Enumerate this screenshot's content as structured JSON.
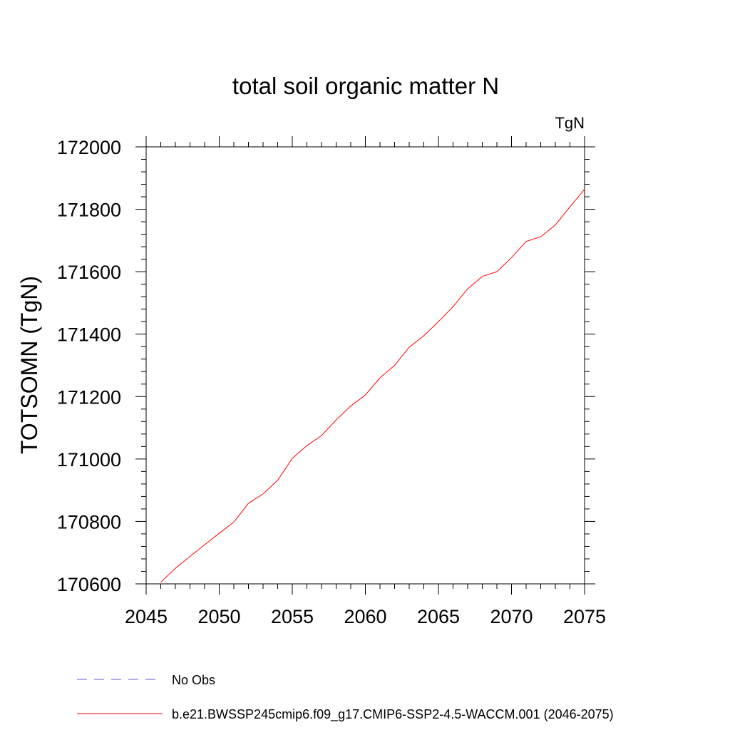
{
  "chart_data": {
    "type": "line",
    "title": "total soil organic matter N",
    "units_label": "TgN",
    "xlabel": "",
    "ylabel": "TOTSOMN  (TgN)",
    "xlim": [
      2045,
      2075
    ],
    "ylim": [
      170600,
      172000
    ],
    "x_ticks": [
      "2045",
      "2050",
      "2055",
      "2060",
      "2065",
      "2070",
      "2075"
    ],
    "y_ticks": [
      "170600",
      "170800",
      "171000",
      "171200",
      "171400",
      "171600",
      "171800",
      "172000"
    ],
    "grid": false,
    "legend_position": "bottom-left",
    "series": [
      {
        "name": "No Obs",
        "color": "#6a5acd",
        "dashed": true,
        "x": [],
        "y": []
      },
      {
        "name": "b.e21.BWSSP245cmip6.f09_g17.CMIP6-SSP2-4.5-WACCM.001 (2046-2075)",
        "color": "#ff0000",
        "dashed": false,
        "x": [
          2046,
          2047,
          2048,
          2049,
          2050,
          2051,
          2052,
          2053,
          2054,
          2055,
          2056,
          2057,
          2058,
          2059,
          2060,
          2061,
          2062,
          2063,
          2064,
          2065,
          2066,
          2067,
          2068,
          2069,
          2070,
          2071,
          2072,
          2073,
          2074,
          2075
        ],
        "y": [
          170605,
          170650,
          170688,
          170725,
          170762,
          170798,
          170858,
          170888,
          170932,
          171002,
          171043,
          171075,
          171125,
          171170,
          171205,
          171260,
          171300,
          171358,
          171395,
          171440,
          171488,
          171545,
          171585,
          171600,
          171645,
          171697,
          171712,
          171750,
          171808,
          171864
        ]
      }
    ]
  }
}
